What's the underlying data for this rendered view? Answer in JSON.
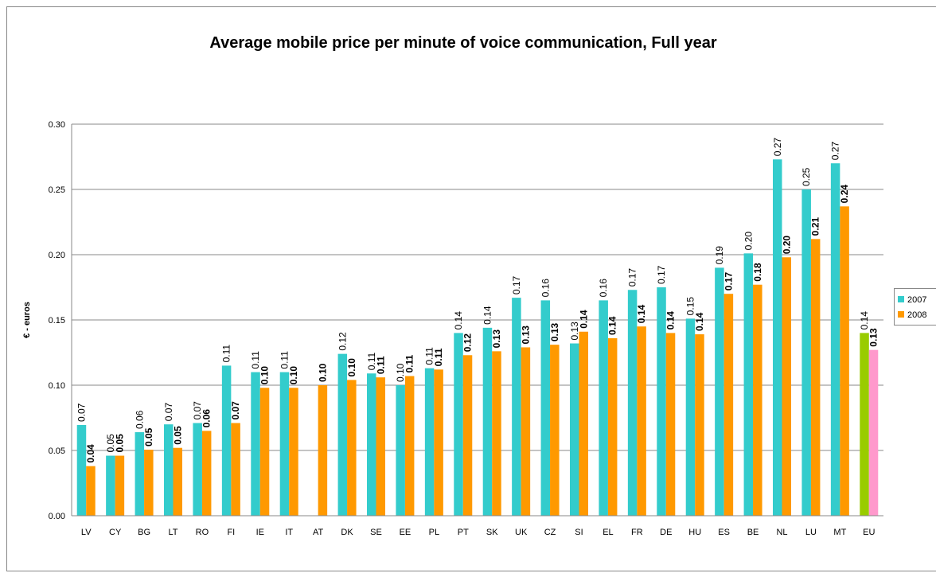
{
  "chart_data": {
    "type": "bar",
    "title": "Average mobile price per minute of voice communication, Full year",
    "y_label": "€ - euros",
    "categories": [
      "LV",
      "CY",
      "BG",
      "LT",
      "RO",
      "FI",
      "IE",
      "IT",
      "AT",
      "DK",
      "SE",
      "EE",
      "PL",
      "PT",
      "SK",
      "UK",
      "CZ",
      "SI",
      "EL",
      "FR",
      "DE",
      "HU",
      "ES",
      "BE",
      "NL",
      "LU",
      "MT",
      "EU"
    ],
    "series": [
      {
        "name": "2007",
        "color": "#33cccc",
        "point_colors": [
          null,
          null,
          null,
          null,
          null,
          null,
          null,
          null,
          null,
          null,
          null,
          null,
          null,
          null,
          null,
          null,
          null,
          null,
          null,
          null,
          null,
          null,
          null,
          null,
          null,
          null,
          null,
          "#99cc00"
        ],
        "values": [
          0.0695,
          0.046,
          0.064,
          0.07,
          0.071,
          0.115,
          0.11,
          0.11,
          null,
          0.124,
          0.109,
          0.1,
          0.113,
          0.14,
          0.144,
          0.167,
          0.165,
          0.132,
          0.165,
          0.173,
          0.175,
          0.151,
          0.19,
          0.201,
          0.273,
          0.25,
          0.27,
          0.14
        ],
        "value_labels": [
          "0.07",
          "0.05",
          "0.06",
          "0.07",
          "0.07",
          "0.11",
          "0.11",
          "0.11",
          null,
          "0.12",
          "0.11",
          "0.10",
          "0.11",
          "0.14",
          "0.14",
          "0.17",
          "0.16",
          "0.13",
          "0.16",
          "0.17",
          "0.17",
          "0.15",
          "0.19",
          "0.20",
          "0.27",
          "0.25",
          "0.27",
          "0.14"
        ]
      },
      {
        "name": "2008",
        "color": "#ff9900",
        "point_colors": [
          null,
          null,
          null,
          null,
          null,
          null,
          null,
          null,
          null,
          null,
          null,
          null,
          null,
          null,
          null,
          null,
          null,
          null,
          null,
          null,
          null,
          null,
          null,
          null,
          null,
          null,
          null,
          "#ff99cc"
        ],
        "values": [
          0.038,
          0.046,
          0.0506,
          0.052,
          0.065,
          0.071,
          0.098,
          0.098,
          0.1,
          0.104,
          0.106,
          0.107,
          0.112,
          0.123,
          0.126,
          0.129,
          0.131,
          0.141,
          0.136,
          0.145,
          0.14,
          0.139,
          0.17,
          0.177,
          0.198,
          0.212,
          0.237,
          0.127
        ],
        "value_labels": [
          "0.04",
          "0.05",
          "0.05",
          "0.05",
          "0.06",
          "0.07",
          "0.10",
          "0.10",
          "0.10",
          "0.10",
          "0.11",
          "0.11",
          "0.11",
          "0.12",
          "0.13",
          "0.13",
          "0.13",
          "0.14",
          "0.14",
          "0.14",
          "0.14",
          "0.14",
          "0.17",
          "0.18",
          "0.20",
          "0.21",
          "0.24",
          "0.13"
        ]
      }
    ],
    "ylim": [
      0,
      0.3
    ],
    "yticks": [
      {
        "value": 0,
        "label": "0.00"
      },
      {
        "value": 0.05,
        "label": "0.05"
      },
      {
        "value": 0.1,
        "label": "0.10"
      },
      {
        "value": 0.15,
        "label": "0.15"
      },
      {
        "value": 0.2,
        "label": "0.20"
      },
      {
        "value": 0.25,
        "label": "0.25"
      },
      {
        "value": 0.3,
        "label": "0.30"
      }
    ],
    "grid": true,
    "legend": "right"
  }
}
